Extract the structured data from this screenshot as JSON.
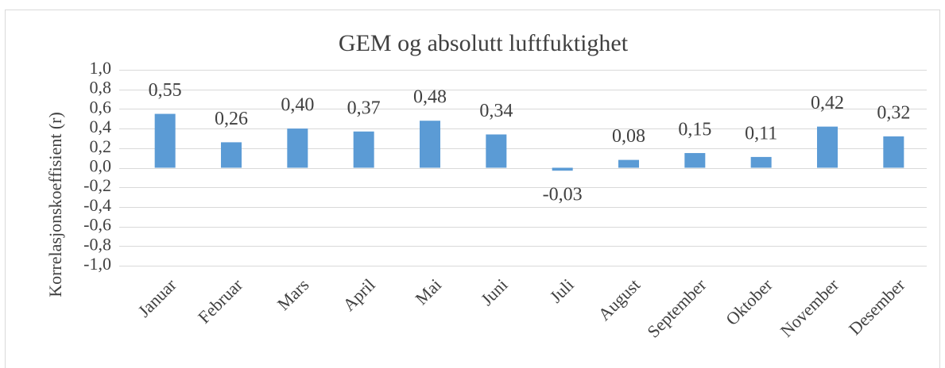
{
  "chart_data": {
    "type": "bar",
    "title": "GEM og absolutt luftfuktighet",
    "y_label": "Korrelasjonskoeffisient (r)",
    "categories": [
      "Januar",
      "Februar",
      "Mars",
      "April",
      "Mai",
      "Juni",
      "Juli",
      "August",
      "September",
      "Oktober",
      "November",
      "Desember"
    ],
    "values": [
      0.55,
      0.26,
      0.4,
      0.37,
      0.48,
      0.34,
      -0.03,
      0.08,
      0.15,
      0.11,
      0.42,
      0.32
    ],
    "value_labels": [
      "0,55",
      "0,26",
      "0,40",
      "0,37",
      "0,48",
      "0,34",
      "-0,03",
      "0,08",
      "0,15",
      "0,11",
      "0,42",
      "0,32"
    ],
    "color": "#5b9bd5",
    "ylim": [
      -1,
      1
    ],
    "yticks": [
      {
        "value": -1,
        "label": "-1,0"
      },
      {
        "value": -0.8,
        "label": "-0,8"
      },
      {
        "value": -0.6,
        "label": "-0,6"
      },
      {
        "value": -0.4,
        "label": "-0,4"
      },
      {
        "value": -0.2,
        "label": "-0,2"
      },
      {
        "value": 0,
        "label": "0,0"
      },
      {
        "value": 0.2,
        "label": "0,2"
      },
      {
        "value": 0.4,
        "label": "0,4"
      },
      {
        "value": 0.6,
        "label": "0,6"
      },
      {
        "value": 0.8,
        "label": "0,8"
      },
      {
        "value": 1,
        "label": "1,0"
      }
    ],
    "grid": true
  }
}
